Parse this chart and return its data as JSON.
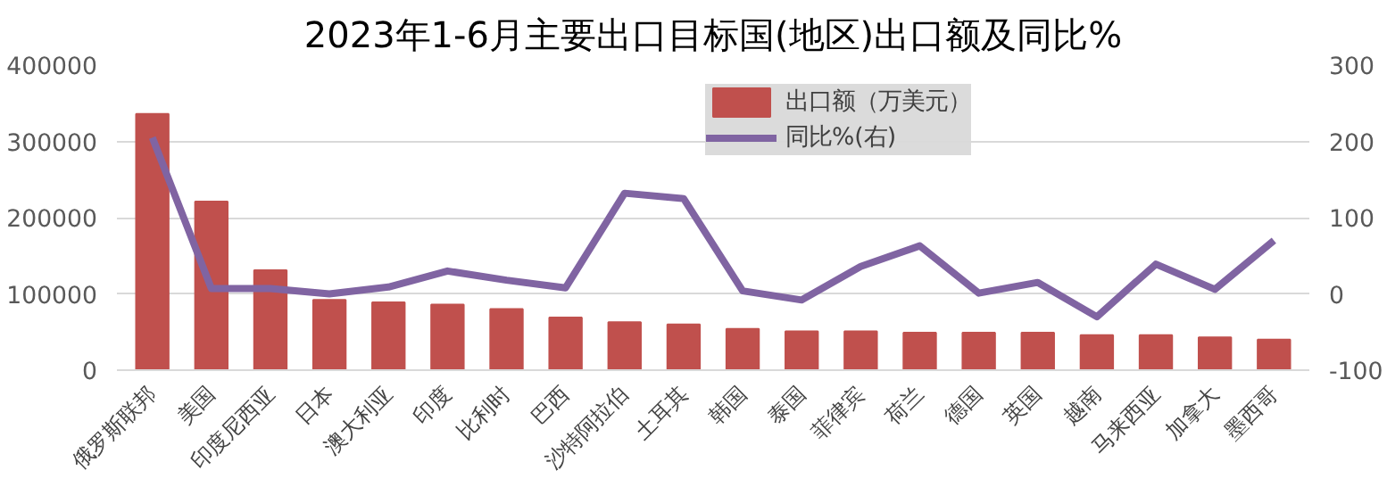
{
  "chart_data": {
    "type": "bar",
    "title": "2023年1-6月主要出口目标国(地区)出口额及同比%",
    "categories": [
      "俄罗斯联邦",
      "美国",
      "印度尼西亚",
      "日本",
      "澳大利亚",
      "印度",
      "比利时",
      "巴西",
      "沙特阿拉伯",
      "土耳其",
      "韩国",
      "泰国",
      "菲律宾",
      "荷兰",
      "德国",
      "英国",
      "越南",
      "马来西亚",
      "加拿大",
      "墨西哥"
    ],
    "series": [
      {
        "name": "出口额（万美元）",
        "color": "#c0504d",
        "values": [
          336000,
          221000,
          131000,
          92000,
          89000,
          86000,
          80000,
          69000,
          63000,
          60000,
          54000,
          51000,
          51000,
          49000,
          49000,
          49000,
          46000,
          46000,
          43000,
          40000
        ]
      },
      {
        "name": "同比%(右)",
        "type": "line",
        "axis": "y2",
        "color": "#8064a2",
        "values": [
          205,
          7,
          7,
          0,
          9,
          30,
          18,
          8,
          132,
          125,
          4,
          -8,
          36,
          63,
          1,
          15,
          -30,
          39,
          6,
          70
        ]
      }
    ],
    "ylim": [
      0,
      400000
    ],
    "yticks": [
      0,
      100000,
      200000,
      300000,
      400000
    ],
    "y2lim": [
      -100,
      300
    ],
    "y2ticks": [
      -100,
      0,
      100,
      200,
      300
    ],
    "grid": "y",
    "legend": "top right"
  }
}
